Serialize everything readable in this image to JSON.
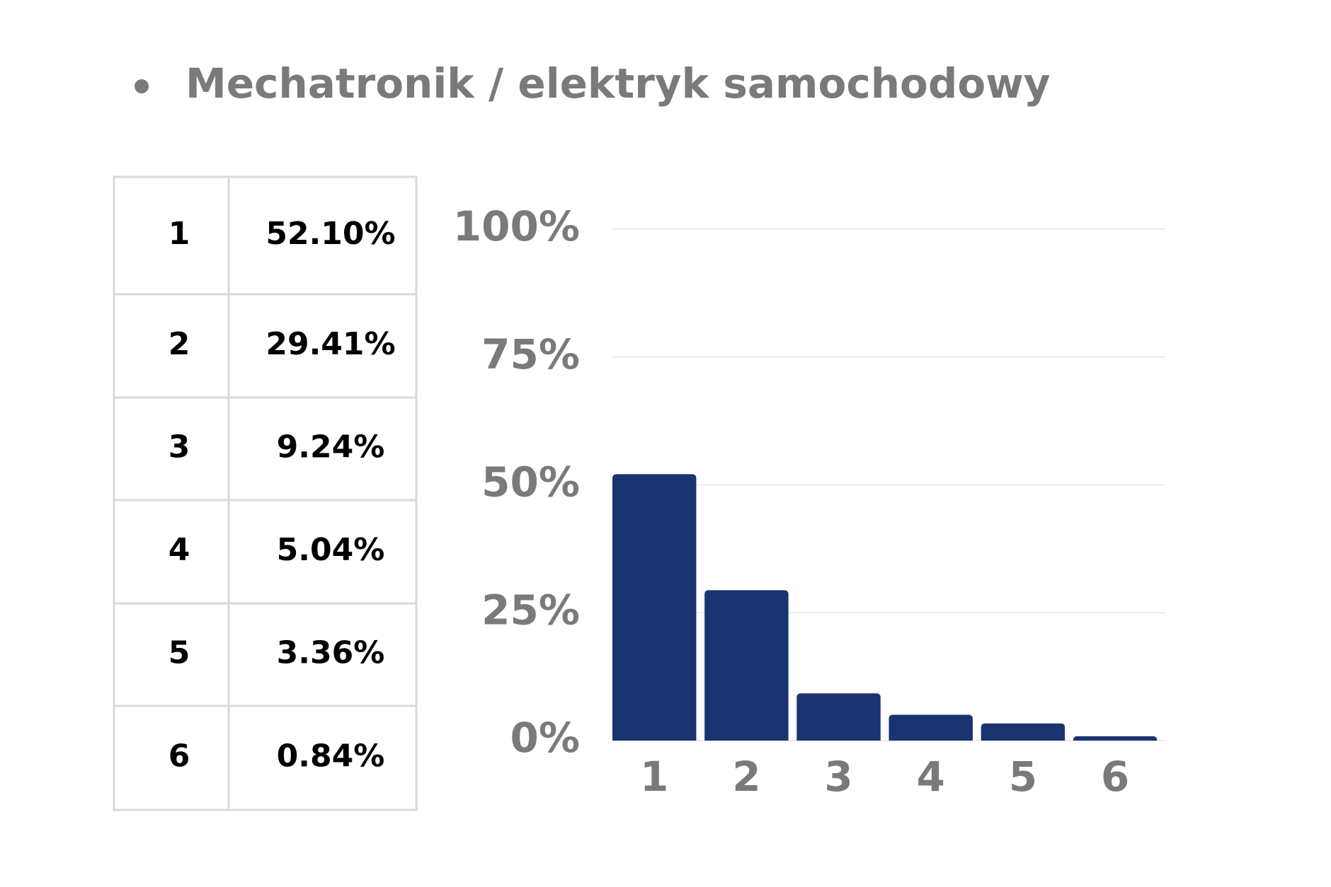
{
  "chart_data": {
    "type": "bar",
    "title": "Mechatronik / elektryk samochodowy",
    "categories": [
      "1",
      "2",
      "3",
      "4",
      "5",
      "6"
    ],
    "values": [
      52.1,
      29.41,
      9.24,
      5.04,
      3.36,
      0.84
    ],
    "value_labels": [
      "52.10%",
      "29.41%",
      "9.24%",
      "5.04%",
      "3.36%",
      "0.84%"
    ],
    "color": "#1a3371",
    "ylim": [
      0,
      100
    ],
    "yticks": [
      {
        "value": 0,
        "label": "0%"
      },
      {
        "value": 25,
        "label": "25%"
      },
      {
        "value": 50,
        "label": "50%"
      },
      {
        "value": 75,
        "label": "75%"
      },
      {
        "value": 100,
        "label": "100%"
      }
    ],
    "grid": true
  }
}
